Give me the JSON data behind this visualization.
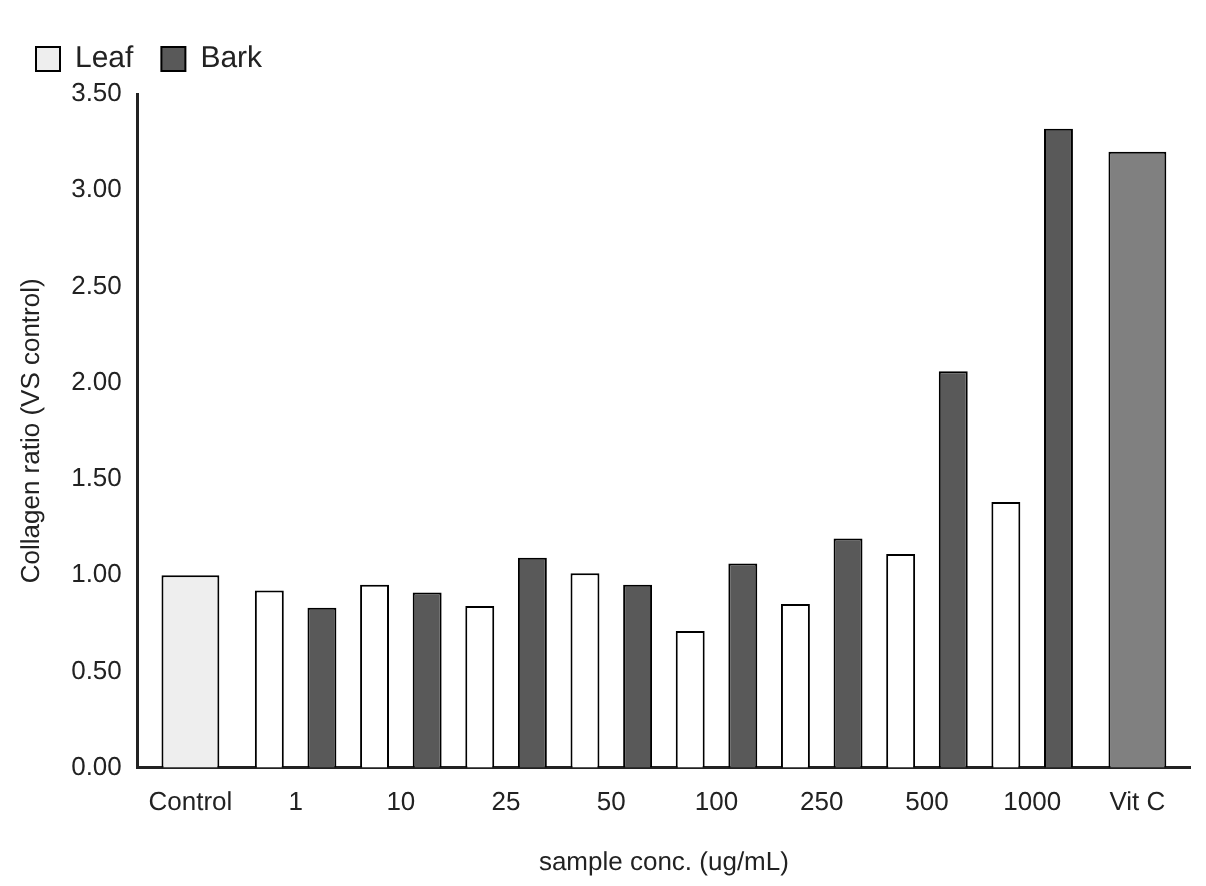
{
  "chart_data": {
    "type": "bar",
    "xlabel": "sample conc. (ug/mL)",
    "ylabel": "Collagen ratio (VS control)",
    "categories": [
      "Control",
      "1",
      "10",
      "25",
      "50",
      "100",
      "250",
      "500",
      "1000",
      "Vit C"
    ],
    "series": [
      {
        "name": "Leaf",
        "color": "#ffffff",
        "colors": [
          "#eeeeee",
          "#ffffff",
          "#ffffff",
          "#ffffff",
          "#ffffff",
          "#ffffff",
          "#ffffff",
          "#ffffff",
          "#ffffff",
          null
        ],
        "values": [
          1.0,
          0.92,
          0.95,
          0.84,
          1.01,
          0.71,
          0.85,
          1.11,
          1.38,
          null
        ]
      },
      {
        "name": "Bark",
        "color": "#595959",
        "colors": [
          null,
          "#595959",
          "#595959",
          "#595959",
          "#595959",
          "#595959",
          "#595959",
          "#595959",
          "#595959",
          "#808080"
        ],
        "values": [
          null,
          0.83,
          0.91,
          1.09,
          0.95,
          1.06,
          1.19,
          2.06,
          3.32,
          3.2
        ]
      }
    ],
    "ylim": [
      0,
      3.5
    ],
    "yticks": [
      {
        "value": 0,
        "label": "0.00"
      },
      {
        "value": 0.5,
        "label": "0.50"
      },
      {
        "value": 1,
        "label": "1.00"
      },
      {
        "value": 1.5,
        "label": "1.50"
      },
      {
        "value": 2,
        "label": "2.00"
      },
      {
        "value": 2.5,
        "label": "2.50"
      },
      {
        "value": 3,
        "label": "3.00"
      },
      {
        "value": 3.5,
        "label": "3.50"
      }
    ],
    "grid": false,
    "legend": "top left"
  }
}
